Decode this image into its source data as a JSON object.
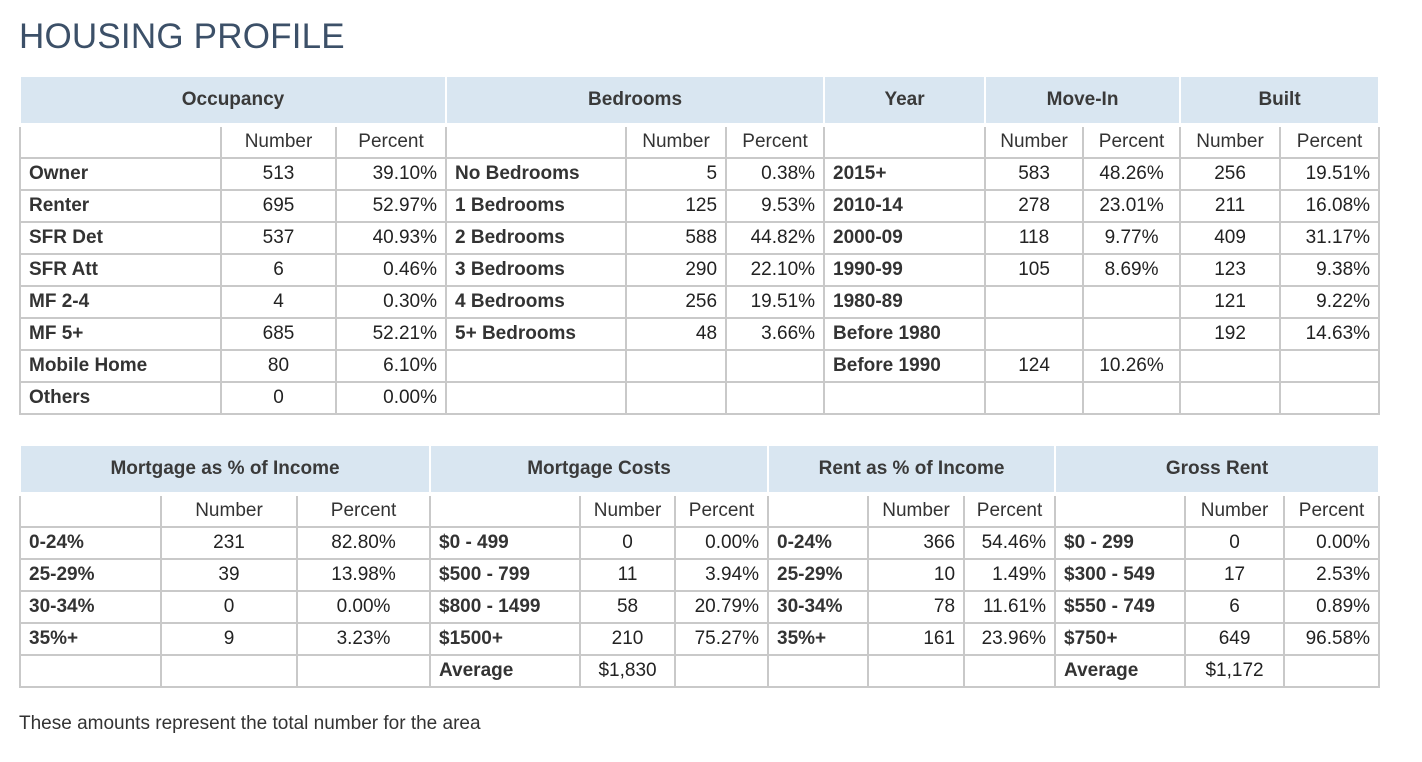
{
  "title": "HOUSING PROFILE",
  "footnote": "These amounts represent the total number for the area",
  "col_labels": {
    "number": "Number",
    "percent": "Percent"
  },
  "top_table": {
    "headers": {
      "occupancy": "Occupancy",
      "bedrooms": "Bedrooms",
      "year": "Year",
      "move_in": "Move-In",
      "built": "Built"
    },
    "rows": [
      {
        "occ_label": "Owner",
        "occ_num": "513",
        "occ_pct": "39.10%",
        "bed_label": "No Bedrooms",
        "bed_num": "5",
        "bed_pct": "0.38%",
        "year_label": "2015+",
        "move_num": "583",
        "move_pct": "48.26%",
        "built_num": "256",
        "built_pct": "19.51%"
      },
      {
        "occ_label": "Renter",
        "occ_num": "695",
        "occ_pct": "52.97%",
        "bed_label": "1 Bedrooms",
        "bed_num": "125",
        "bed_pct": "9.53%",
        "year_label": "2010-14",
        "move_num": "278",
        "move_pct": "23.01%",
        "built_num": "211",
        "built_pct": "16.08%"
      },
      {
        "occ_label": "SFR Det",
        "occ_num": "537",
        "occ_pct": "40.93%",
        "bed_label": "2 Bedrooms",
        "bed_num": "588",
        "bed_pct": "44.82%",
        "year_label": "2000-09",
        "move_num": "118",
        "move_pct": "9.77%",
        "built_num": "409",
        "built_pct": "31.17%"
      },
      {
        "occ_label": "SFR Att",
        "occ_num": "6",
        "occ_pct": "0.46%",
        "bed_label": "3 Bedrooms",
        "bed_num": "290",
        "bed_pct": "22.10%",
        "year_label": "1990-99",
        "move_num": "105",
        "move_pct": "8.69%",
        "built_num": "123",
        "built_pct": "9.38%"
      },
      {
        "occ_label": "MF 2-4",
        "occ_num": "4",
        "occ_pct": "0.30%",
        "bed_label": "4 Bedrooms",
        "bed_num": "256",
        "bed_pct": "19.51%",
        "year_label": "1980-89",
        "move_num": "",
        "move_pct": "",
        "built_num": "121",
        "built_pct": "9.22%"
      },
      {
        "occ_label": "MF 5+",
        "occ_num": "685",
        "occ_pct": "52.21%",
        "bed_label": "5+ Bedrooms",
        "bed_num": "48",
        "bed_pct": "3.66%",
        "year_label": "Before 1980",
        "move_num": "",
        "move_pct": "",
        "built_num": "192",
        "built_pct": "14.63%"
      },
      {
        "occ_label": "Mobile Home",
        "occ_num": "80",
        "occ_pct": "6.10%",
        "bed_label": "",
        "bed_num": "",
        "bed_pct": "",
        "year_label": "Before 1990",
        "move_num": "124",
        "move_pct": "10.26%",
        "built_num": "",
        "built_pct": ""
      },
      {
        "occ_label": "Others",
        "occ_num": "0",
        "occ_pct": "0.00%",
        "bed_label": "",
        "bed_num": "",
        "bed_pct": "",
        "year_label": "",
        "move_num": "",
        "move_pct": "",
        "built_num": "",
        "built_pct": ""
      }
    ]
  },
  "bottom_table": {
    "headers": {
      "mortgage_pct": "Mortgage as % of Income",
      "mortgage_costs": "Mortgage Costs",
      "rent_pct": "Rent as % of Income",
      "gross_rent": "Gross Rent"
    },
    "rows": [
      {
        "mi_label": "0-24%",
        "mi_num": "231",
        "mi_pct": "82.80%",
        "mc_label": "$0 - 499",
        "mc_num": "0",
        "mc_pct": "0.00%",
        "ri_label": "0-24%",
        "ri_num": "366",
        "ri_pct": "54.46%",
        "gr_label": "$0 - 299",
        "gr_num": "0",
        "gr_pct": "0.00%"
      },
      {
        "mi_label": "25-29%",
        "mi_num": "39",
        "mi_pct": "13.98%",
        "mc_label": "$500 - 799",
        "mc_num": "11",
        "mc_pct": "3.94%",
        "ri_label": "25-29%",
        "ri_num": "10",
        "ri_pct": "1.49%",
        "gr_label": "$300 - 549",
        "gr_num": "17",
        "gr_pct": "2.53%"
      },
      {
        "mi_label": "30-34%",
        "mi_num": "0",
        "mi_pct": "0.00%",
        "mc_label": "$800 - 1499",
        "mc_num": "58",
        "mc_pct": "20.79%",
        "ri_label": "30-34%",
        "ri_num": "78",
        "ri_pct": "11.61%",
        "gr_label": "$550 - 749",
        "gr_num": "6",
        "gr_pct": "0.89%"
      },
      {
        "mi_label": "35%+",
        "mi_num": "9",
        "mi_pct": "3.23%",
        "mc_label": "$1500+",
        "mc_num": "210",
        "mc_pct": "75.27%",
        "ri_label": "35%+",
        "ri_num": "161",
        "ri_pct": "23.96%",
        "gr_label": "$750+",
        "gr_num": "649",
        "gr_pct": "96.58%"
      },
      {
        "mi_label": "",
        "mi_num": "",
        "mi_pct": "",
        "mc_label": "Average",
        "mc_num": "$1,830",
        "mc_pct": "",
        "ri_label": "",
        "ri_num": "",
        "ri_pct": "",
        "gr_label": "Average",
        "gr_num": "$1,172",
        "gr_pct": ""
      }
    ]
  }
}
